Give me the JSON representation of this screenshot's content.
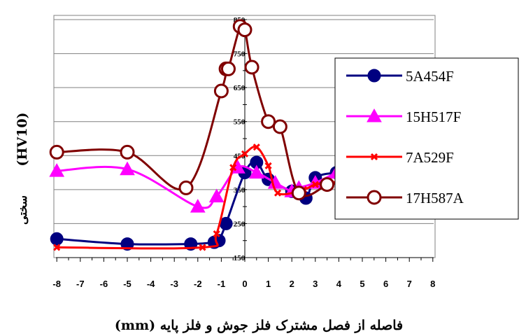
{
  "chart_data": {
    "type": "line",
    "xlabel": "فاصله از فصل مشترک فلز جوش و فلز پایه (mm)",
    "ylabel_text": "سختی",
    "ylabel_unit": "(HV10)",
    "x_ticks": [
      "-8",
      "-7",
      "-6",
      "-5",
      "-4",
      "-3",
      "-2",
      "-1",
      "0",
      "1",
      "2",
      "3",
      "4",
      "5",
      "6",
      "7",
      "8"
    ],
    "y_ticks": [
      "150",
      "250",
      "350",
      "450",
      "550",
      "650",
      "750",
      "850"
    ],
    "xlim": [
      -8,
      8
    ],
    "ylim": [
      150,
      850
    ],
    "grid": "horizontal",
    "legend_position": "right",
    "series": [
      {
        "name": "5A454F",
        "color": "#000080",
        "marker": "circle-filled",
        "x": [
          -8,
          -5,
          -2.3,
          -1.3,
          -1.1,
          -0.8,
          0,
          0.5,
          1,
          2,
          2.6,
          3,
          3.9
        ],
        "y": [
          205,
          190,
          190,
          195,
          200,
          250,
          400,
          430,
          380,
          345,
          325,
          385,
          400
        ]
      },
      {
        "name": "15H517F",
        "color": "#ff00ff",
        "marker": "triangle",
        "x": [
          -8,
          -5,
          -2,
          -1.2,
          -0.3,
          0.5,
          1.3,
          2,
          2.3,
          3,
          3.9
        ],
        "y": [
          405,
          410,
          300,
          330,
          415,
          400,
          370,
          345,
          355,
          370,
          400
        ]
      },
      {
        "name": "7A529F",
        "color": "#ff0000",
        "marker": "x",
        "x": [
          -8,
          -1.8,
          -1.2,
          -0.5,
          0,
          0.5,
          1,
          1.4,
          2.5,
          3,
          3.8
        ],
        "y": [
          180,
          180,
          220,
          415,
          455,
          475,
          420,
          340,
          350,
          365,
          370
        ]
      },
      {
        "name": "17H587A",
        "color": "#800000",
        "marker": "circle-open",
        "x": [
          -8,
          -5,
          -2.5,
          -1,
          -0.8,
          -0.7,
          -0.2,
          0,
          0.3,
          1,
          1.5,
          2.3,
          3.5
        ],
        "y": [
          460,
          460,
          355,
          640,
          705,
          705,
          830,
          820,
          710,
          550,
          535,
          340,
          365
        ]
      }
    ]
  }
}
